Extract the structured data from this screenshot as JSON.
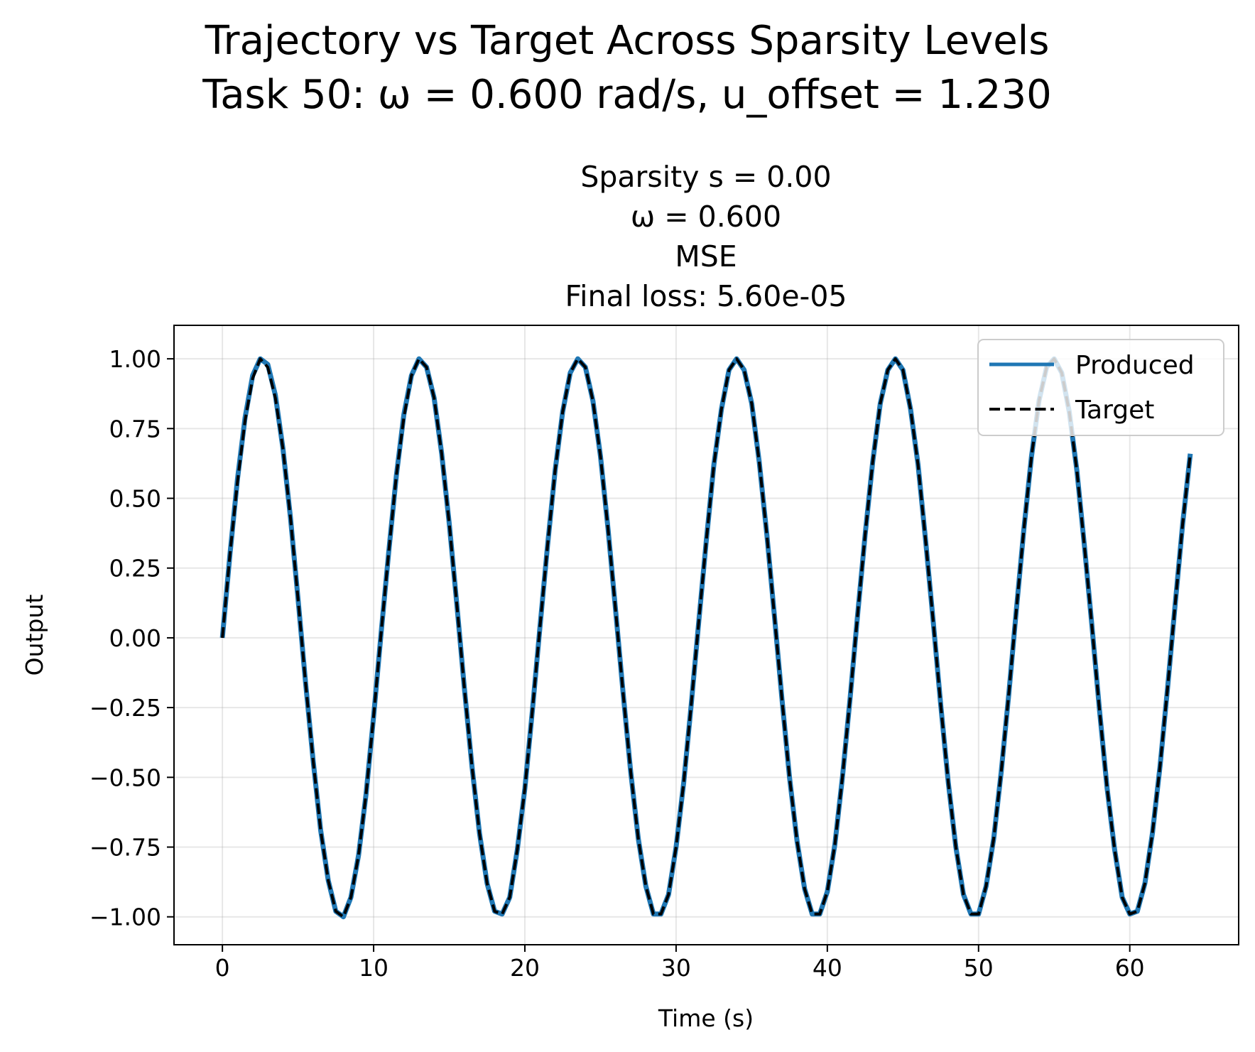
{
  "figure": {
    "suptitle_line1": "Trajectory vs Target Across Sparsity Levels",
    "suptitle_line2": "Task 50: ω = 0.600 rad/s, u_offset = 1.230"
  },
  "chart_data": {
    "type": "line",
    "title_lines": [
      "Sparsity s = 0.00",
      "ω = 0.600",
      "MSE",
      "Final loss: 5.60e-05"
    ],
    "xlabel": "Time (s)",
    "ylabel": "Output",
    "xlim": [
      -3.2,
      67.2
    ],
    "ylim": [
      -1.1,
      1.12
    ],
    "xticks": [
      0,
      10,
      20,
      30,
      40,
      50,
      60
    ],
    "xtick_labels": [
      "0",
      "10",
      "20",
      "30",
      "40",
      "50",
      "60"
    ],
    "yticks": [
      1.0,
      0.75,
      0.5,
      0.25,
      0.0,
      -0.25,
      -0.5,
      -0.75,
      -1.0
    ],
    "ytick_labels": [
      "1.00",
      "0.75",
      "0.50",
      "0.25",
      "0.00",
      "−0.25",
      "−0.50",
      "−0.75",
      "−1.00"
    ],
    "grid": true,
    "legend_position": "upper right",
    "series": [
      {
        "name": "Produced",
        "color": "#1f77b4",
        "style": "solid",
        "x": [
          0,
          0.5,
          1,
          1.5,
          2,
          2.5,
          3,
          3.5,
          4,
          4.5,
          5,
          5.5,
          6,
          6.5,
          7,
          7.5,
          8,
          8.5,
          9,
          9.5,
          10,
          10.5,
          11,
          11.5,
          12,
          12.5,
          13,
          13.5,
          14,
          14.5,
          15,
          15.5,
          16,
          16.5,
          17,
          17.5,
          18,
          18.5,
          19,
          19.5,
          20,
          20.5,
          21,
          21.5,
          22,
          22.5,
          23,
          23.5,
          24,
          24.5,
          25,
          25.5,
          26,
          26.5,
          27,
          27.5,
          28,
          28.5,
          29,
          29.5,
          30,
          30.5,
          31,
          31.5,
          32,
          32.5,
          33,
          33.5,
          34,
          34.5,
          35,
          35.5,
          36,
          36.5,
          37,
          37.5,
          38,
          38.5,
          39,
          39.5,
          40,
          40.5,
          41,
          41.5,
          42,
          42.5,
          43,
          43.5,
          44,
          44.5,
          45,
          45.5,
          46,
          46.5,
          47,
          47.5,
          48,
          48.5,
          49,
          49.5,
          50,
          50.5,
          51,
          51.5,
          52,
          52.5,
          53,
          53.5,
          54,
          54.5,
          55,
          55.5,
          56,
          56.5,
          57,
          57.5,
          58,
          58.5,
          59,
          59.5,
          60,
          60.5,
          61,
          61.5,
          62,
          62.5,
          63,
          63.5,
          64
        ],
        "y": [
          0.0,
          0.3,
          0.57,
          0.79,
          0.94,
          1.0,
          0.98,
          0.87,
          0.68,
          0.43,
          0.14,
          -0.16,
          -0.44,
          -0.69,
          -0.87,
          -0.98,
          -1.0,
          -0.93,
          -0.78,
          -0.56,
          -0.28,
          0.02,
          0.31,
          0.58,
          0.8,
          0.94,
          1.0,
          0.97,
          0.86,
          0.66,
          0.41,
          0.12,
          -0.18,
          -0.46,
          -0.7,
          -0.88,
          -0.98,
          -0.99,
          -0.93,
          -0.76,
          -0.54,
          -0.26,
          0.04,
          0.33,
          0.6,
          0.81,
          0.95,
          1.0,
          0.97,
          0.85,
          0.65,
          0.39,
          0.1,
          -0.2,
          -0.48,
          -0.72,
          -0.89,
          -0.99,
          -0.99,
          -0.92,
          -0.75,
          -0.52,
          -0.24,
          0.06,
          0.35,
          0.62,
          0.82,
          0.96,
          1.0,
          0.96,
          0.84,
          0.63,
          0.37,
          0.08,
          -0.22,
          -0.5,
          -0.73,
          -0.9,
          -0.99,
          -0.99,
          -0.91,
          -0.74,
          -0.5,
          -0.22,
          0.08,
          0.37,
          0.63,
          0.84,
          0.96,
          1.0,
          0.96,
          0.82,
          0.62,
          0.35,
          0.06,
          -0.24,
          -0.52,
          -0.75,
          -0.92,
          -0.99,
          -0.99,
          -0.89,
          -0.72,
          -0.48,
          -0.2,
          0.1,
          0.39,
          0.65,
          0.85,
          0.97,
          1.0,
          0.95,
          0.81,
          0.6,
          0.33,
          0.04,
          -0.26,
          -0.54,
          -0.76,
          -0.93,
          -0.99,
          -0.98,
          -0.88,
          -0.7,
          -0.46,
          -0.18,
          0.12,
          0.41,
          0.66
        ]
      },
      {
        "name": "Target",
        "color": "#000000",
        "style": "dashed",
        "x": [
          0,
          0.5,
          1,
          1.5,
          2,
          2.5,
          3,
          3.5,
          4,
          4.5,
          5,
          5.5,
          6,
          6.5,
          7,
          7.5,
          8,
          8.5,
          9,
          9.5,
          10,
          10.5,
          11,
          11.5,
          12,
          12.5,
          13,
          13.5,
          14,
          14.5,
          15,
          15.5,
          16,
          16.5,
          17,
          17.5,
          18,
          18.5,
          19,
          19.5,
          20,
          20.5,
          21,
          21.5,
          22,
          22.5,
          23,
          23.5,
          24,
          24.5,
          25,
          25.5,
          26,
          26.5,
          27,
          27.5,
          28,
          28.5,
          29,
          29.5,
          30,
          30.5,
          31,
          31.5,
          32,
          32.5,
          33,
          33.5,
          34,
          34.5,
          35,
          35.5,
          36,
          36.5,
          37,
          37.5,
          38,
          38.5,
          39,
          39.5,
          40,
          40.5,
          41,
          41.5,
          42,
          42.5,
          43,
          43.5,
          44,
          44.5,
          45,
          45.5,
          46,
          46.5,
          47,
          47.5,
          48,
          48.5,
          49,
          49.5,
          50,
          50.5,
          51,
          51.5,
          52,
          52.5,
          53,
          53.5,
          54,
          54.5,
          55,
          55.5,
          56,
          56.5,
          57,
          57.5,
          58,
          58.5,
          59,
          59.5,
          60,
          60.5,
          61,
          61.5,
          62,
          62.5,
          63,
          63.5,
          64
        ],
        "y": [
          0.0,
          0.3,
          0.56,
          0.78,
          0.93,
          1.0,
          0.97,
          0.86,
          0.68,
          0.43,
          0.14,
          -0.16,
          -0.44,
          -0.69,
          -0.87,
          -0.98,
          -1.0,
          -0.93,
          -0.78,
          -0.56,
          -0.28,
          0.02,
          0.31,
          0.58,
          0.79,
          0.94,
          1.0,
          0.97,
          0.86,
          0.66,
          0.41,
          0.12,
          -0.18,
          -0.46,
          -0.7,
          -0.88,
          -0.98,
          -0.99,
          -0.93,
          -0.76,
          -0.54,
          -0.26,
          0.04,
          0.33,
          0.6,
          0.81,
          0.95,
          1.0,
          0.97,
          0.85,
          0.65,
          0.39,
          0.1,
          -0.2,
          -0.48,
          -0.72,
          -0.89,
          -0.99,
          -0.99,
          -0.92,
          -0.75,
          -0.52,
          -0.24,
          0.06,
          0.35,
          0.62,
          0.82,
          0.96,
          1.0,
          0.96,
          0.84,
          0.63,
          0.37,
          0.08,
          -0.22,
          -0.5,
          -0.73,
          -0.9,
          -0.99,
          -0.99,
          -0.91,
          -0.74,
          -0.5,
          -0.22,
          0.08,
          0.37,
          0.63,
          0.84,
          0.96,
          1.0,
          0.96,
          0.82,
          0.62,
          0.35,
          0.06,
          -0.24,
          -0.52,
          -0.75,
          -0.92,
          -0.99,
          -0.99,
          -0.89,
          -0.72,
          -0.48,
          -0.2,
          0.1,
          0.39,
          0.65,
          0.85,
          0.97,
          1.0,
          0.95,
          0.81,
          0.6,
          0.33,
          0.04,
          -0.26,
          -0.54,
          -0.76,
          -0.93,
          -0.99,
          -0.98,
          -0.88,
          -0.7,
          -0.46,
          -0.18,
          0.12,
          0.41,
          0.66
        ]
      }
    ]
  }
}
